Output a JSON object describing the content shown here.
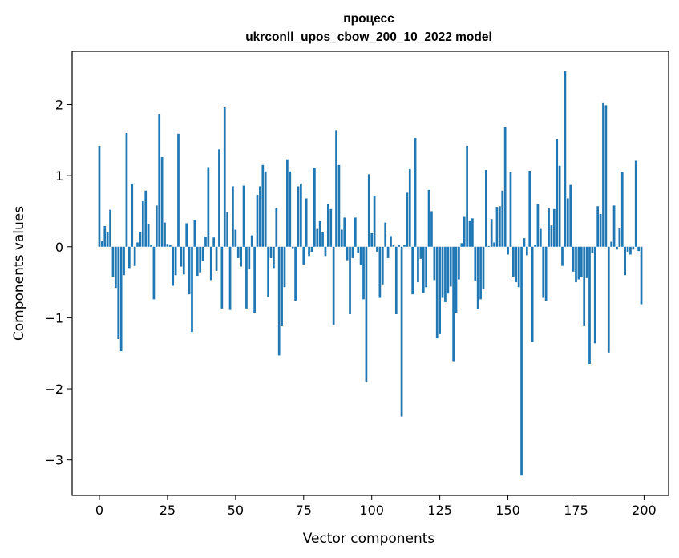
{
  "chart_data": {
    "type": "bar",
    "title": [
      "процесс",
      "ukrconll_upos_cbow_200_10_2022 model"
    ],
    "xlabel": "Vector components",
    "ylabel": "Components values",
    "xlim": [
      -10,
      209
    ],
    "ylim": [
      -3.5,
      2.75
    ],
    "xticks": [
      0,
      25,
      50,
      75,
      100,
      125,
      150,
      175,
      200
    ],
    "xtick_labels": [
      "0",
      "25",
      "50",
      "75",
      "100",
      "125",
      "150",
      "175",
      "200"
    ],
    "yticks": [
      -3,
      -2,
      -1,
      0,
      1,
      2
    ],
    "ytick_labels": [
      "−3",
      "−2",
      "−1",
      "0",
      "1",
      "2"
    ],
    "bar_color": "#1f77b4",
    "grid": false,
    "values": [
      1.42,
      0.08,
      0.29,
      0.2,
      0.52,
      -0.42,
      -0.58,
      -1.3,
      -1.47,
      -0.4,
      1.6,
      -0.3,
      0.89,
      -0.27,
      0.06,
      0.21,
      0.64,
      0.79,
      0.32,
      0.02,
      -0.74,
      0.58,
      1.87,
      1.26,
      0.34,
      0.04,
      0.02,
      -0.55,
      -0.4,
      1.59,
      -0.28,
      -0.39,
      0.33,
      -0.67,
      -1.2,
      0.38,
      -0.41,
      -0.36,
      -0.2,
      0.14,
      1.12,
      -0.47,
      0.13,
      -0.34,
      1.37,
      -0.87,
      1.96,
      0.49,
      -0.89,
      0.85,
      0.24,
      -0.16,
      -0.28,
      0.86,
      -0.87,
      -0.32,
      0.16,
      -0.93,
      0.73,
      0.85,
      1.15,
      1.06,
      -0.71,
      -0.16,
      -0.3,
      0.54,
      -1.53,
      -1.12,
      -0.57,
      1.23,
      1.06,
      -0.02,
      -0.76,
      0.85,
      0.89,
      -0.25,
      0.68,
      -0.13,
      -0.07,
      1.11,
      0.25,
      0.36,
      0.2,
      -0.13,
      0.6,
      0.53,
      -1.1,
      1.64,
      1.15,
      0.24,
      0.41,
      -0.19,
      -0.95,
      -0.16,
      0.41,
      -0.09,
      -0.26,
      -0.74,
      -1.9,
      1.02,
      0.19,
      0.72,
      -0.07,
      -0.72,
      -0.53,
      0.34,
      -0.16,
      0.15,
      0.02,
      -0.95,
      0.02,
      -2.39,
      0.03,
      0.76,
      1.09,
      -0.67,
      1.53,
      -0.5,
      -0.17,
      -0.65,
      -0.57,
      0.8,
      0.5,
      -0.47,
      -1.29,
      -1.22,
      -0.72,
      -0.78,
      -0.66,
      -0.56,
      -1.61,
      -0.93,
      -0.46,
      0.05,
      0.42,
      1.42,
      0.36,
      0.4,
      -0.48,
      -0.88,
      -0.74,
      -0.6,
      1.08,
      0.01,
      0.39,
      0.06,
      0.56,
      0.57,
      0.79,
      1.68,
      -0.11,
      1.05,
      -0.42,
      -0.5,
      -0.57,
      -3.22,
      0.12,
      -0.12,
      1.07,
      -1.34,
      0.02,
      0.6,
      0.25,
      -0.72,
      -0.76,
      0.54,
      0.3,
      0.53,
      1.51,
      1.14,
      -0.27,
      2.47,
      0.68,
      0.87,
      -0.35,
      -0.5,
      -0.46,
      -0.42,
      -1.12,
      -0.44,
      -1.65,
      -0.09,
      -1.36,
      0.57,
      0.46,
      2.03,
      1.99,
      -1.49,
      0.07,
      0.58,
      -0.04,
      0.26,
      1.05,
      -0.4,
      -0.07,
      -0.11,
      -0.04,
      1.21,
      -0.06,
      -0.81
    ]
  }
}
